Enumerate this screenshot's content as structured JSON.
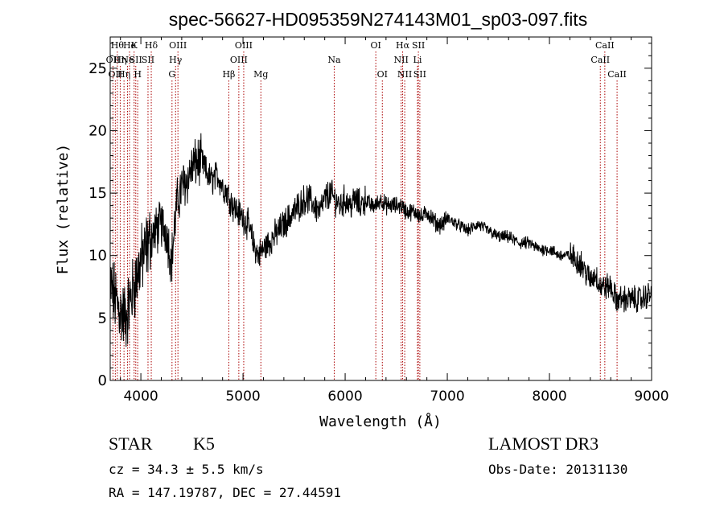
{
  "chart_data": {
    "type": "line",
    "title": "spec-56627-HD095359N274143M01_sp03-097.fits",
    "xlabel": "Wavelength (Å)",
    "ylabel": "Flux (relative)",
    "xlim": [
      3700,
      9000
    ],
    "ylim": [
      0,
      27.5
    ],
    "x_ticks": [
      4000,
      5000,
      6000,
      7000,
      8000,
      9000
    ],
    "y_ticks": [
      0,
      5,
      10,
      15,
      20,
      25
    ],
    "x_tick_labels": [
      "4000",
      "5000",
      "6000",
      "7000",
      "8000",
      "9000"
    ],
    "y_tick_labels": [
      "0",
      "5",
      "10",
      "15",
      "20",
      "25"
    ],
    "line_color": "#000000",
    "marker_color": "#aa0000",
    "grid": false,
    "series": [
      {
        "x": [
          3700,
          3750,
          3800,
          3850,
          3900,
          3950,
          4000,
          4050,
          4100,
          4150,
          4200,
          4250,
          4300,
          4350,
          4400,
          4450,
          4500,
          4550,
          4600,
          4650,
          4700,
          4750,
          4800,
          4850,
          4900,
          4950,
          5000,
          5050,
          5100,
          5150,
          5200,
          5250,
          5300,
          5350,
          5400,
          5450,
          5500,
          5550,
          5600,
          5650,
          5700,
          5750,
          5800,
          5850,
          5900,
          5950,
          6000,
          6050,
          6100,
          6150,
          6200,
          6250,
          6300,
          6350,
          6400,
          6450,
          6500,
          6550,
          6600,
          6650,
          6700,
          6750,
          6800,
          6850,
          6900,
          6950,
          7000,
          7100,
          7200,
          7300,
          7400,
          7500,
          7600,
          7700,
          7800,
          7900,
          8000,
          8100,
          8200,
          8300,
          8400,
          8450,
          8500,
          8550,
          8600,
          8650,
          8700,
          8800,
          8900,
          9000
        ],
        "y": [
          7.5,
          6.5,
          5.5,
          5.0,
          6.5,
          8.0,
          9.5,
          10.5,
          11.5,
          12.0,
          12.5,
          12.0,
          9.5,
          14.0,
          15.5,
          16.0,
          17.0,
          17.5,
          17.5,
          16.5,
          16.0,
          16.5,
          15.5,
          15.0,
          14.0,
          13.5,
          13.0,
          12.5,
          11.0,
          10.0,
          10.5,
          11.0,
          11.5,
          12.0,
          12.5,
          13.0,
          13.5,
          14.0,
          14.5,
          14.5,
          14.0,
          13.5,
          14.5,
          15.0,
          14.5,
          14.0,
          14.5,
          14.0,
          14.5,
          14.0,
          14.5,
          14.0,
          14.0,
          14.5,
          14.0,
          14.0,
          14.0,
          14.0,
          13.5,
          13.5,
          13.5,
          13.0,
          13.5,
          13.0,
          12.5,
          12.5,
          13.0,
          12.5,
          12.0,
          12.5,
          12.0,
          11.5,
          11.5,
          11.0,
          11.0,
          10.5,
          10.5,
          10.0,
          10.0,
          9.5,
          8.0,
          8.5,
          7.5,
          7.5,
          7.5,
          6.5,
          6.5,
          6.5,
          6.5,
          7.0
        ]
      }
    ],
    "lines": [
      {
        "x": 3727,
        "row": 1,
        "label": "OII"
      },
      {
        "x": 3750,
        "row": 2,
        "label": "OII"
      },
      {
        "x": 3770,
        "row": 0,
        "label": "Hθ"
      },
      {
        "x": 3798,
        "row": 1,
        "label": "Hη"
      },
      {
        "x": 3835,
        "row": 2,
        "label": "Hη"
      },
      {
        "x": 3869,
        "row": 1,
        "label": "Ne"
      },
      {
        "x": 3889,
        "row": 0,
        "label": "He"
      },
      {
        "x": 3934,
        "row": 0,
        "label": "K"
      },
      {
        "x": 3950,
        "row": 1,
        "label": "SII"
      },
      {
        "x": 3969,
        "row": 2,
        "label": "H"
      },
      {
        "x": 4070,
        "row": 1,
        "label": "SII"
      },
      {
        "x": 4102,
        "row": 0,
        "label": "Hδ"
      },
      {
        "x": 4305,
        "row": 2,
        "label": "G"
      },
      {
        "x": 4340,
        "row": 1,
        "label": "Hγ"
      },
      {
        "x": 4363,
        "row": 0,
        "label": "OIII"
      },
      {
        "x": 4861,
        "row": 2,
        "label": "Hβ"
      },
      {
        "x": 4959,
        "row": 1,
        "label": "OIII"
      },
      {
        "x": 5007,
        "row": 0,
        "label": "OIII"
      },
      {
        "x": 5175,
        "row": 2,
        "label": "Mg"
      },
      {
        "x": 5893,
        "row": 1,
        "label": "Na"
      },
      {
        "x": 6300,
        "row": 0,
        "label": "OI"
      },
      {
        "x": 6364,
        "row": 2,
        "label": "OI"
      },
      {
        "x": 6548,
        "row": 1,
        "label": "NII"
      },
      {
        "x": 6563,
        "row": 0,
        "label": "Hα"
      },
      {
        "x": 6583,
        "row": 2,
        "label": "NII"
      },
      {
        "x": 6708,
        "row": 1,
        "label": "Li"
      },
      {
        "x": 6717,
        "row": 0,
        "label": "SII"
      },
      {
        "x": 6731,
        "row": 2,
        "label": "SII"
      },
      {
        "x": 8498,
        "row": 1,
        "label": "CaII"
      },
      {
        "x": 8542,
        "row": 0,
        "label": "CaII"
      },
      {
        "x": 8662,
        "row": 2,
        "label": "CaII"
      }
    ]
  },
  "info": {
    "object_type": "STAR",
    "subclass": "K5",
    "survey": "LAMOST DR3",
    "cz": "cz = 34.3 ± 5.5 km/s",
    "obs_date": "Obs-Date: 20131130",
    "radec": "RA = 147.19787, DEC =  27.44591"
  }
}
